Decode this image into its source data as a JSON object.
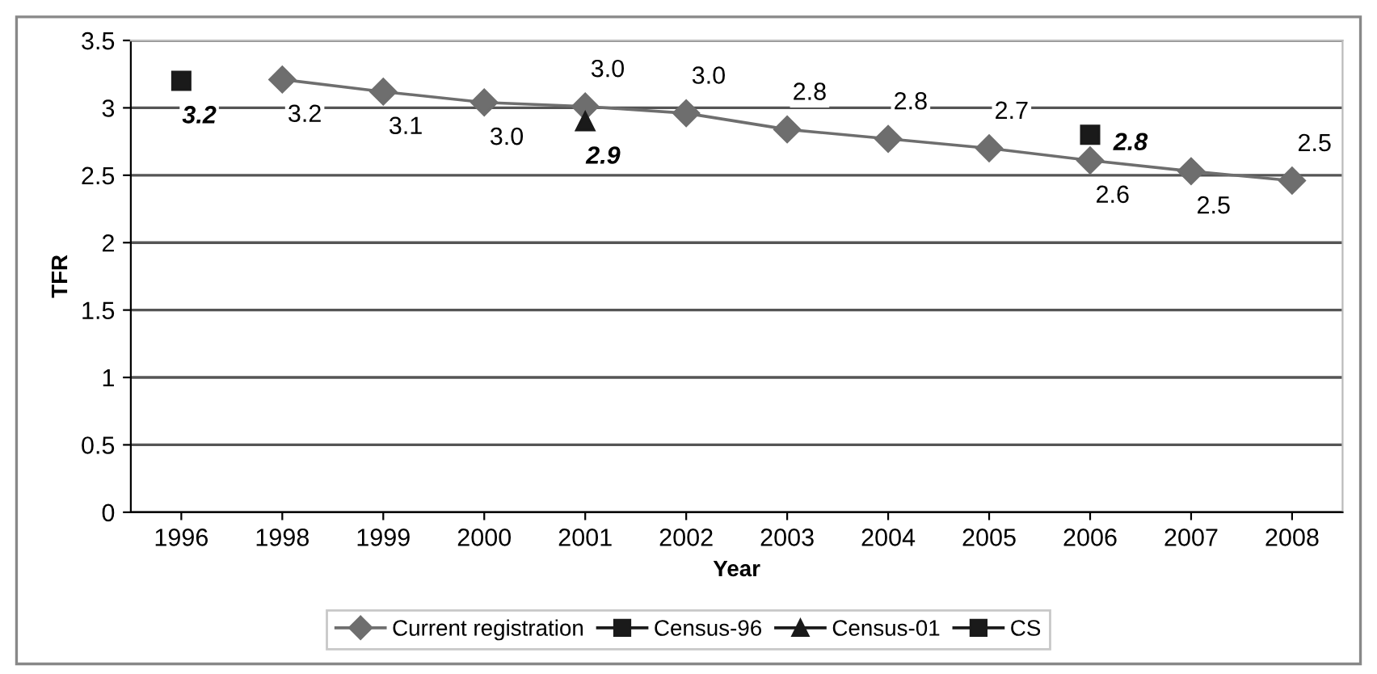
{
  "chart_data": {
    "type": "line",
    "xlabel": "Year",
    "ylabel": "TFR",
    "categories": [
      "1996",
      "1998",
      "1999",
      "2000",
      "2001",
      "2002",
      "2003",
      "2004",
      "2005",
      "2006",
      "2007",
      "2008"
    ],
    "series": [
      {
        "name": "Current registration",
        "color": "#6e6e6e",
        "marker": "diamond",
        "values": [
          null,
          3.21,
          3.12,
          3.04,
          3.01,
          2.96,
          2.84,
          2.77,
          2.7,
          2.61,
          2.53,
          2.46
        ],
        "value_labels": [
          null,
          "3.2",
          "3.1",
          "3.0",
          "3.0",
          "3.0",
          "2.8",
          "2.8",
          "2.7",
          "2.6",
          "2.5",
          "2.5"
        ]
      },
      {
        "name": "Census-96",
        "color": "#1a1a1a",
        "marker": "square",
        "values": [
          3.2,
          null,
          null,
          null,
          null,
          null,
          null,
          null,
          null,
          null,
          null,
          null
        ],
        "value_labels": [
          "3.2",
          null,
          null,
          null,
          null,
          null,
          null,
          null,
          null,
          null,
          null,
          null
        ]
      },
      {
        "name": "Census-01",
        "color": "#1a1a1a",
        "marker": "triangle",
        "values": [
          null,
          null,
          null,
          null,
          2.9,
          null,
          null,
          null,
          null,
          null,
          null,
          null
        ],
        "value_labels": [
          null,
          null,
          null,
          null,
          "2.9",
          null,
          null,
          null,
          null,
          null,
          null,
          null
        ]
      },
      {
        "name": "CS",
        "color": "#1a1a1a",
        "marker": "square",
        "values": [
          null,
          null,
          null,
          null,
          null,
          null,
          null,
          null,
          null,
          2.8,
          null,
          null
        ],
        "value_labels": [
          null,
          null,
          null,
          null,
          null,
          null,
          null,
          null,
          null,
          "2.8",
          null,
          null
        ]
      }
    ],
    "ylim": [
      0,
      3.5
    ],
    "yticks": [
      0,
      0.5,
      1,
      1.5,
      2,
      2.5,
      3,
      3.5
    ],
    "grid": "y",
    "legend": "bottom",
    "line_style": "solid"
  }
}
